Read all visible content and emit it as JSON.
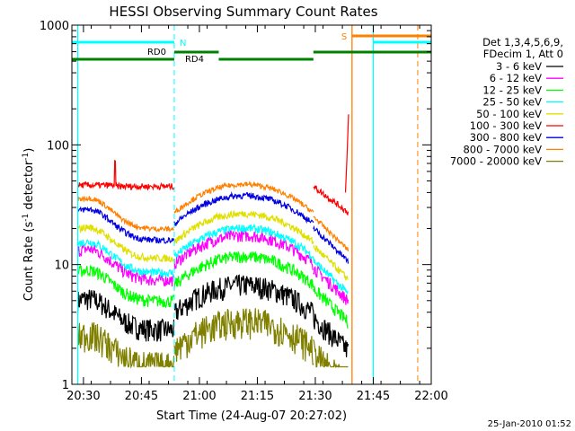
{
  "chart_data": {
    "type": "line",
    "title": "HESSI Observing Summary Count Rates",
    "xlabel": "Start Time (24-Aug-07 20:27:02)",
    "ylabel_main": "Count Rate (s",
    "ylabel_sup1": "-1",
    "ylabel_mid": " detector",
    "ylabel_sup2": "-1",
    "ylabel_end": ")",
    "y_scale": "log",
    "ylim": [
      1,
      1000
    ],
    "y_ticks": [
      {
        "value": 1,
        "label": "1"
      },
      {
        "value": 10,
        "label": "10"
      },
      {
        "value": 100,
        "label": "100"
      },
      {
        "value": 1000,
        "label": "1000"
      }
    ],
    "xlim_minutes": [
      0,
      93
    ],
    "x_ticks": [
      {
        "minute": 3,
        "label": "20:30"
      },
      {
        "minute": 18,
        "label": "20:45"
      },
      {
        "minute": 33,
        "label": "21:00"
      },
      {
        "minute": 48,
        "label": "21:15"
      },
      {
        "minute": 63,
        "label": "21:30"
      },
      {
        "minute": 78,
        "label": "21:45"
      },
      {
        "minute": 93,
        "label": "22:00"
      }
    ],
    "legend_position": "right",
    "legend_header": [
      "Det 1,3,4,5,6,9,",
      "FDecim 1, Att 0"
    ],
    "series": [
      {
        "name": "3 - 6 keV",
        "color": "#000000"
      },
      {
        "name": "6 - 12 keV",
        "color": "#ff00ff"
      },
      {
        "name": "12 - 25 keV",
        "color": "#00ff00"
      },
      {
        "name": "25 - 50 keV",
        "color": "#00ffff"
      },
      {
        "name": "50 - 100 keV",
        "color": "#e0e000"
      },
      {
        "name": "100 - 300 keV",
        "color": "#ff0000"
      },
      {
        "name": "300 - 800 keV",
        "color": "#0000e0"
      },
      {
        "name": "800 - 7000 keV",
        "color": "#ff8000"
      },
      {
        "name": "7000 - 20000 keV",
        "color": "#808000"
      }
    ],
    "annotations": {
      "night_label": "N",
      "saa_label": "S",
      "rd0_label": "RD0",
      "rd4_label": "RD4"
    },
    "timestamp": "25-Jan-2010 01:52"
  },
  "colors": {
    "night": "#00ffff",
    "saa": "#ff8000",
    "flags": "#008000"
  }
}
